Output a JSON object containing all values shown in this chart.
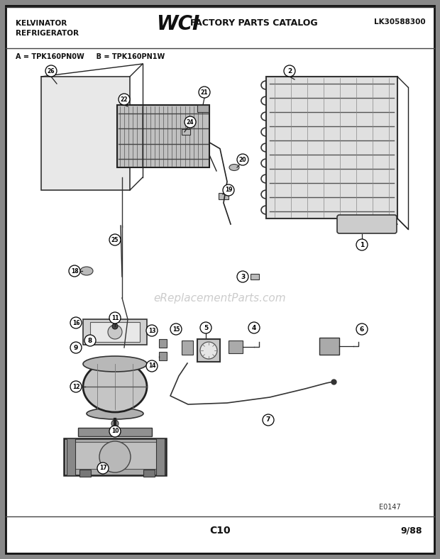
{
  "bg_color": "#888888",
  "page_bg": "#ffffff",
  "title_left1": "KELVINATOR",
  "title_left2": "REFRIGERATOR",
  "title_center_logo": "WCI",
  "title_center_text": "FACTORY PARTS CATALOG",
  "title_right": "LK30588300",
  "model_line": "A = TPK160PN0W     B = TPK160PN1W",
  "footer_center": "C10",
  "footer_right": "9/88",
  "diagram_ref": "E0147",
  "watermark": "eReplacementParts.com"
}
